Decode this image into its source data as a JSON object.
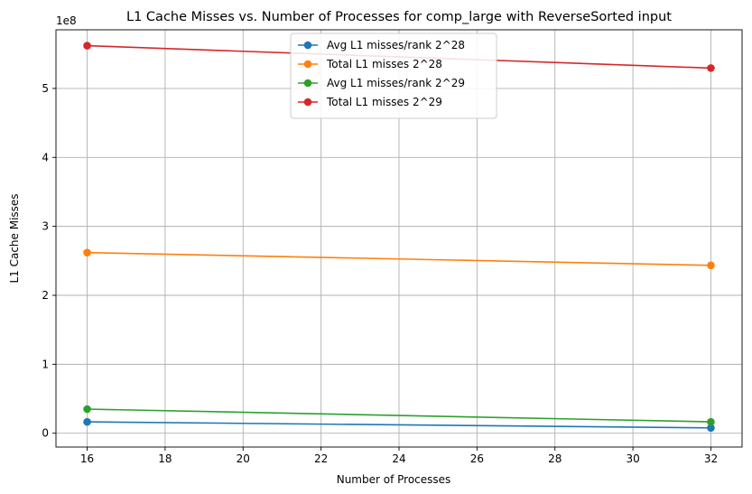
{
  "chart_data": {
    "type": "line",
    "title": "L1 Cache Misses vs. Number of Processes for comp_large with ReverseSorted input",
    "xlabel": "Number of Processes",
    "ylabel": "L1 Cache Misses",
    "y_scale_label": "1e8",
    "x": [
      16,
      32
    ],
    "xlim": [
      15.2,
      32.8
    ],
    "ylim": [
      -20000000,
      585000000
    ],
    "xticks": [
      "16",
      "18",
      "20",
      "22",
      "24",
      "26",
      "28",
      "30",
      "32"
    ],
    "yticks": [
      "0",
      "1",
      "2",
      "3",
      "4",
      "5"
    ],
    "grid": true,
    "legend_position": "top-center",
    "series": [
      {
        "name": "Avg L1 misses/rank 2^28",
        "color": "#1f77b4",
        "values": [
          16500000,
          7700000
        ]
      },
      {
        "name": "Total L1 misses 2^28",
        "color": "#ff7f0e",
        "values": [
          262000000,
          243500000
        ]
      },
      {
        "name": "Avg L1 misses/rank 2^29",
        "color": "#2ca02c",
        "values": [
          35000000,
          16500000
        ]
      },
      {
        "name": "Total L1 misses 2^29",
        "color": "#d62728",
        "values": [
          562000000,
          529500000
        ]
      }
    ]
  }
}
